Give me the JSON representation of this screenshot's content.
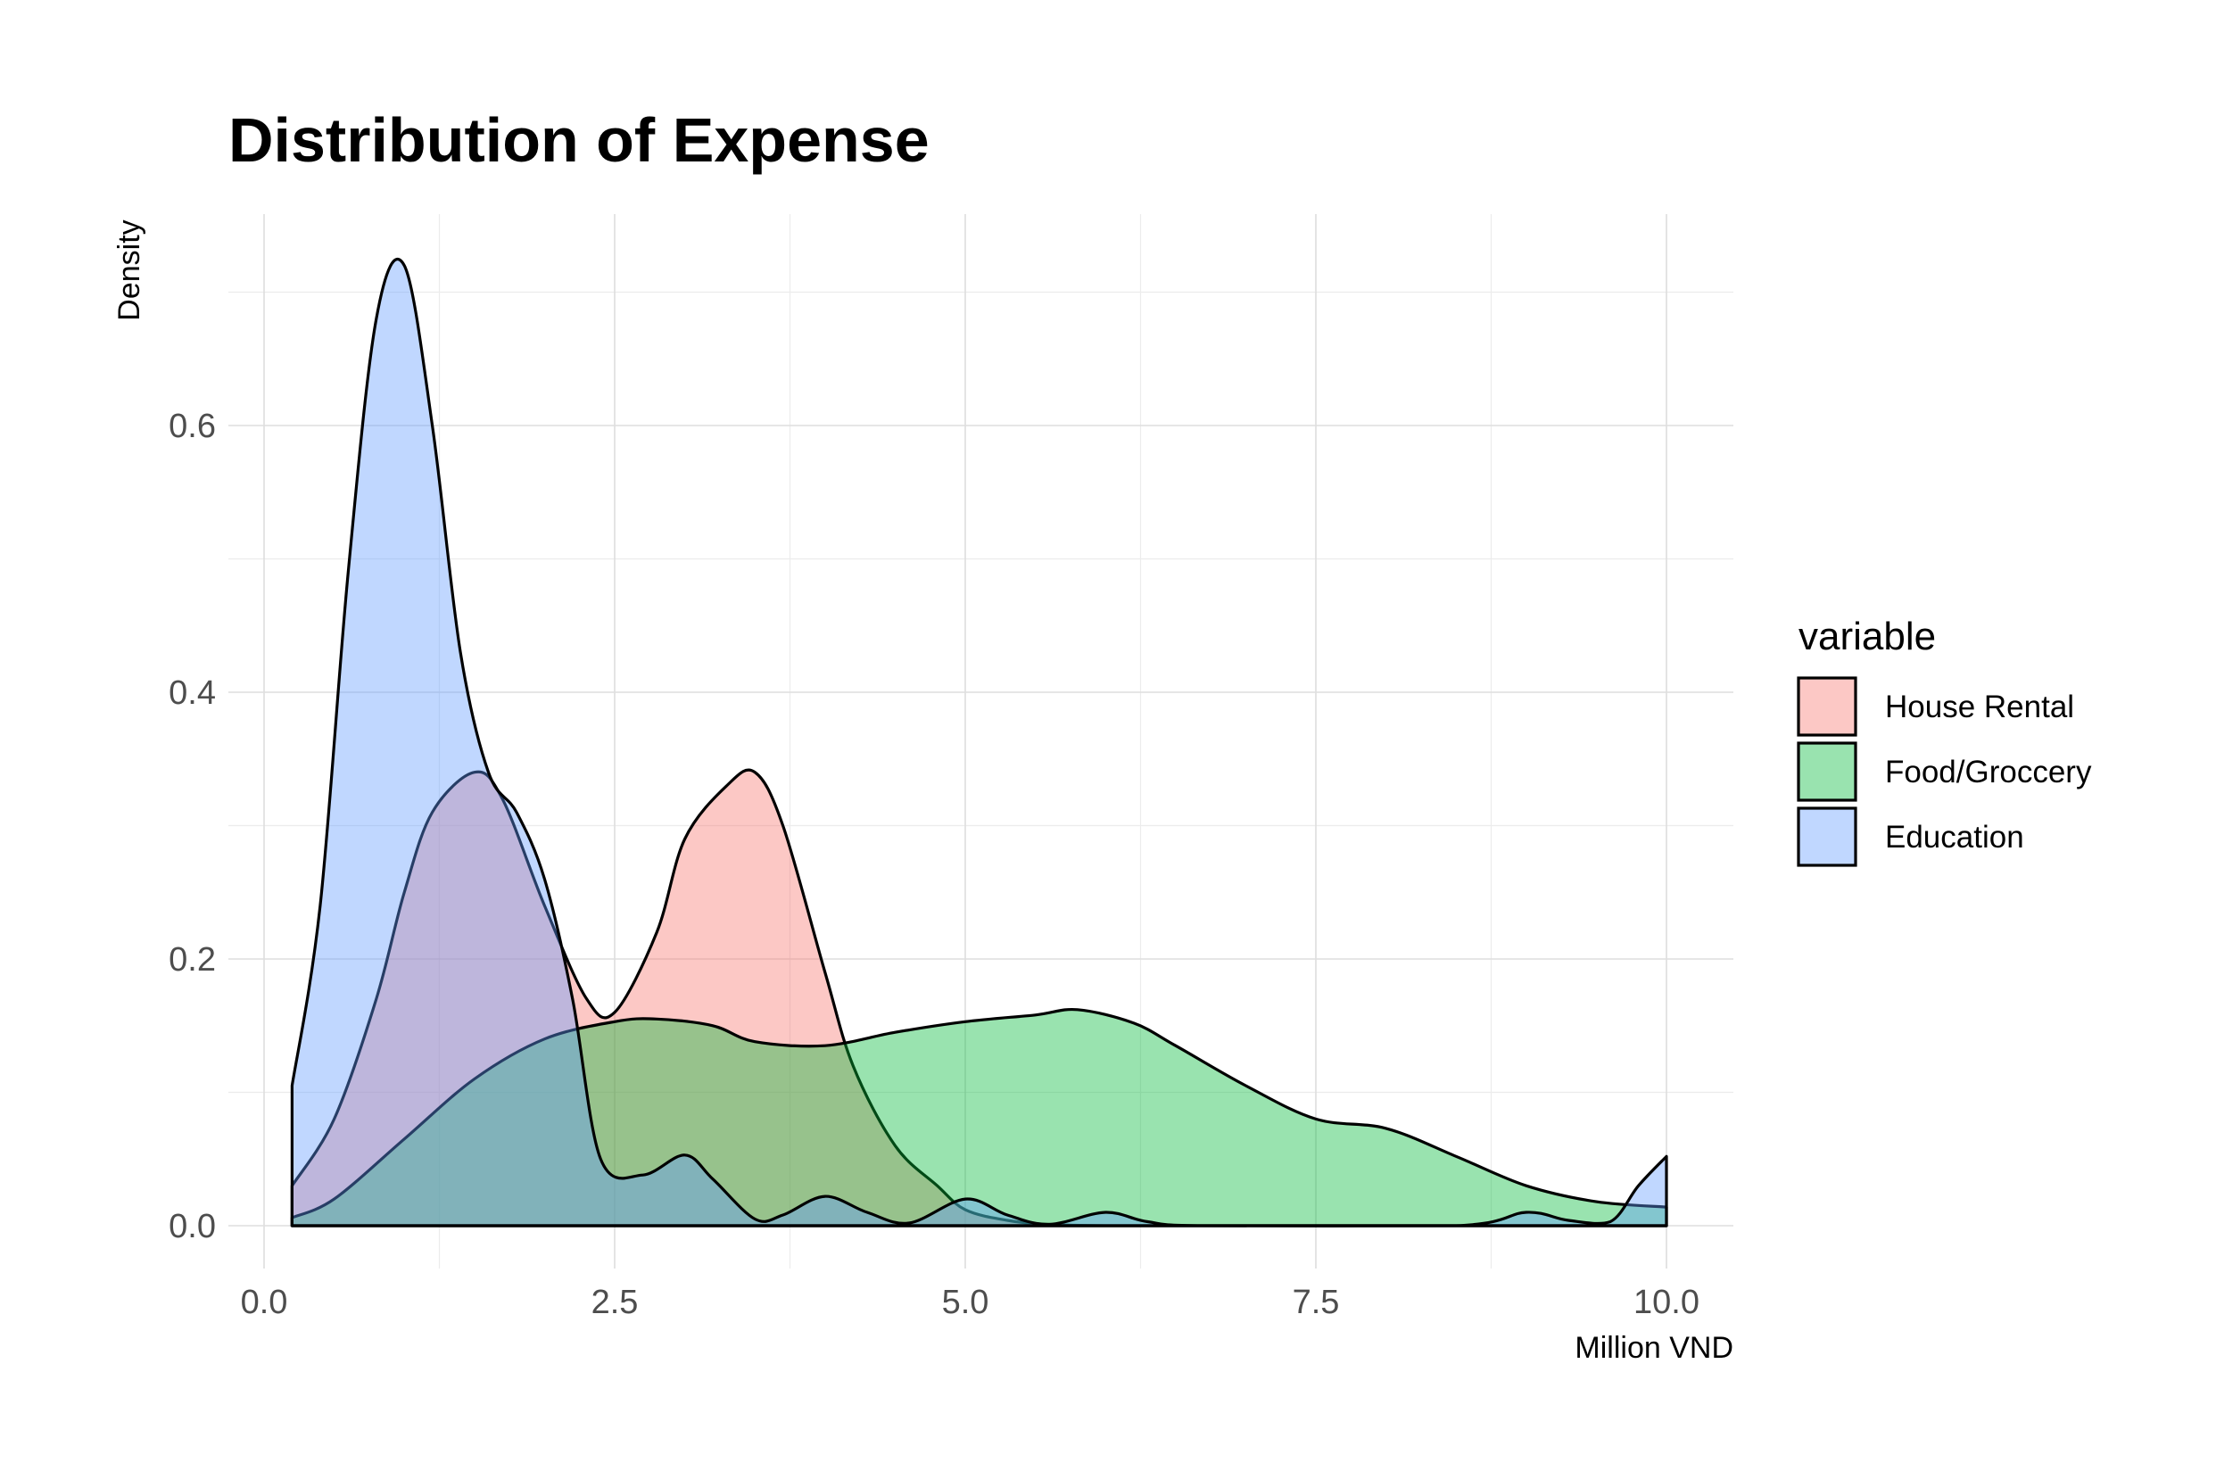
{
  "chart_data": {
    "type": "area",
    "title": "Distribution of Expense",
    "xlabel": "Million VND",
    "ylabel": "Density",
    "xlim": [
      0,
      10.5
    ],
    "ylim": [
      0,
      0.75
    ],
    "x_ticks": [
      "0.0",
      "2.5",
      "5.0",
      "7.5",
      "10.0"
    ],
    "y_ticks": [
      "0.0",
      "0.2",
      "0.4",
      "0.6"
    ],
    "grid": true,
    "legend": {
      "title": "variable",
      "position": "right"
    },
    "series": [
      {
        "name": "House Rental",
        "color": "#F8766D",
        "x": [
          0.2,
          0.5,
          0.8,
          1.0,
          1.2,
          1.5,
          1.7,
          2.0,
          2.3,
          2.5,
          2.8,
          3.0,
          3.3,
          3.5,
          3.7,
          4.0,
          4.2,
          4.5,
          4.8,
          5.0,
          5.3,
          5.6,
          6.0,
          6.5,
          7.0,
          8.0,
          9.0,
          10.0
        ],
        "values": [
          0.03,
          0.08,
          0.17,
          0.25,
          0.31,
          0.34,
          0.32,
          0.24,
          0.17,
          0.16,
          0.22,
          0.29,
          0.33,
          0.34,
          0.3,
          0.19,
          0.12,
          0.06,
          0.03,
          0.012,
          0.004,
          0.001,
          0.0,
          0.0,
          0.0,
          0.0,
          0.0,
          0.0
        ]
      },
      {
        "name": "Food/Groccery",
        "color": "#00BA38",
        "x": [
          0.2,
          0.5,
          1.0,
          1.5,
          2.0,
          2.5,
          2.8,
          3.2,
          3.5,
          4.0,
          4.5,
          5.0,
          5.5,
          5.8,
          6.2,
          6.5,
          7.0,
          7.5,
          8.0,
          8.5,
          9.0,
          9.5,
          10.0
        ],
        "values": [
          0.006,
          0.02,
          0.065,
          0.11,
          0.14,
          0.153,
          0.155,
          0.15,
          0.138,
          0.135,
          0.145,
          0.153,
          0.158,
          0.162,
          0.152,
          0.135,
          0.105,
          0.08,
          0.073,
          0.052,
          0.03,
          0.018,
          0.014
        ]
      },
      {
        "name": "Education",
        "color": "#619CFF",
        "x": [
          0.2,
          0.4,
          0.6,
          0.8,
          1.0,
          1.2,
          1.4,
          1.6,
          1.8,
          2.0,
          2.2,
          2.4,
          2.7,
          3.0,
          3.2,
          3.5,
          3.7,
          4.0,
          4.3,
          4.6,
          5.0,
          5.3,
          5.6,
          6.0,
          6.3,
          6.7,
          8.5,
          9.0,
          9.3,
          9.6,
          9.8,
          10.0
        ],
        "values": [
          0.105,
          0.24,
          0.49,
          0.68,
          0.72,
          0.6,
          0.43,
          0.34,
          0.31,
          0.26,
          0.17,
          0.05,
          0.038,
          0.053,
          0.035,
          0.005,
          0.008,
          0.022,
          0.01,
          0.002,
          0.02,
          0.008,
          0.001,
          0.01,
          0.003,
          0.0,
          0.0,
          0.01,
          0.004,
          0.003,
          0.03,
          0.052
        ]
      }
    ]
  }
}
